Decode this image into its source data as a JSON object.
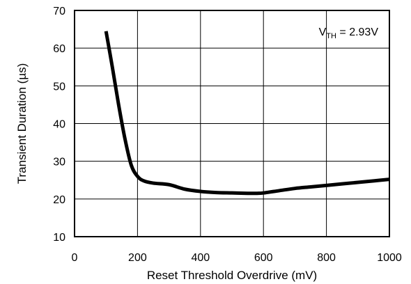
{
  "chart_data": {
    "type": "line",
    "title": "",
    "xlabel": "Reset Threshold Overdrive (mV)",
    "ylabel": "Transient Duration (µs)",
    "xlim": [
      0,
      1000
    ],
    "ylim": [
      10,
      70
    ],
    "x_ticks": [
      0,
      200,
      400,
      600,
      800,
      1000
    ],
    "y_ticks": [
      10,
      20,
      30,
      40,
      50,
      60,
      70
    ],
    "x_tick_labels": [
      "0",
      "200",
      "400",
      "600",
      "800",
      "1000"
    ],
    "y_tick_labels": [
      "10",
      "20",
      "30",
      "40",
      "50",
      "60",
      "70"
    ],
    "grid": true,
    "series": [
      {
        "color": "#000000",
        "x": [
          100,
          120,
          140,
          160,
          180,
          200,
          220,
          250,
          300,
          350,
          400,
          450,
          500,
          550,
          580,
          600,
          650,
          700,
          750,
          800,
          850,
          900,
          950,
          1000
        ],
        "y": [
          64.5,
          55,
          45,
          36,
          29,
          26,
          24.8,
          24.2,
          23.8,
          22.6,
          22.0,
          21.7,
          21.6,
          21.5,
          21.5,
          21.6,
          22.2,
          22.8,
          23.2,
          23.6,
          24.0,
          24.4,
          24.8,
          25.2
        ]
      }
    ],
    "annotation": {
      "prefix": "V",
      "subscript": "TH",
      "suffix": " = 2.93V",
      "placement": "top-right"
    }
  }
}
